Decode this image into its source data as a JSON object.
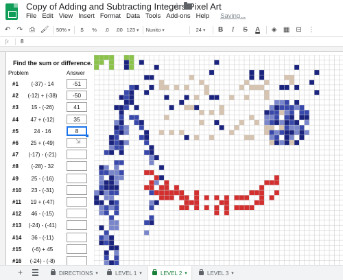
{
  "document": {
    "title": "Copy of Adding and Subtracting Integers Pixel Art",
    "saving_label": "Saving...",
    "menus": [
      "File",
      "Edit",
      "View",
      "Insert",
      "Format",
      "Data",
      "Tools",
      "Add-ons",
      "Help"
    ]
  },
  "toolbar": {
    "zoom": "50%",
    "currency": "$",
    "percent": "%",
    "decimal_less": ".0",
    "decimal_more": ".00",
    "number_format": "123",
    "font": "Nunito",
    "font_size": "24",
    "bold": "B",
    "italic": "I",
    "strike": "S",
    "text_color": "A"
  },
  "formula_bar": {
    "fx_label": "fx",
    "value": "8"
  },
  "worksheet": {
    "heading": "Find the sum or difference.",
    "problem_header": "Problem",
    "answer_header": "Answer",
    "problems": [
      {
        "num": "#1",
        "expr": "(-37) - 14",
        "answer": "-51"
      },
      {
        "num": "#2",
        "expr": "(-12) + (-38)",
        "answer": "-50"
      },
      {
        "num": "#3",
        "expr": "15 - (-26)",
        "answer": "41"
      },
      {
        "num": "#4",
        "expr": "47 + (-12)",
        "answer": "35"
      },
      {
        "num": "#5",
        "expr": "24 - 16",
        "answer": "8"
      },
      {
        "num": "#6",
        "expr": "25 + (-49)",
        "answer": ""
      },
      {
        "num": "#7",
        "expr": "(-17) - (-21)",
        "answer": ""
      },
      {
        "num": "#8",
        "expr": "(-28) - 32",
        "answer": ""
      },
      {
        "num": "#9",
        "expr": "25 - (-16)",
        "answer": ""
      },
      {
        "num": "#10",
        "expr": "23 - (-31)",
        "answer": ""
      },
      {
        "num": "#11",
        "expr": "19 + (-47)",
        "answer": ""
      },
      {
        "num": "#12",
        "expr": "46 - (-15)",
        "answer": ""
      },
      {
        "num": "#13",
        "expr": "(-24) - (-41)",
        "answer": ""
      },
      {
        "num": "#14",
        "expr": "36 - (-11)",
        "answer": ""
      },
      {
        "num": "#15",
        "expr": "(-6) + 45",
        "answer": ""
      },
      {
        "num": "#16",
        "expr": "(-24) - (-8)",
        "answer": ""
      }
    ],
    "selected_problem": "#5"
  },
  "pixel_art": {
    "colors": {
      "green": "#8bc34a",
      "navy": "#1a237e",
      "blue": "#3949ab",
      "lightblue": "#7986cb",
      "beige": "#d7c4b0",
      "red": "#d32f2f",
      "grid": "#c8c8c8"
    }
  },
  "sheet_tabs": {
    "add_sheet_icon": "plus-icon",
    "all_sheets_icon": "list-icon",
    "tabs": [
      {
        "label": "DIRECTIONS",
        "active": false
      },
      {
        "label": "LEVEL 1",
        "active": false
      },
      {
        "label": "LEVEL 2",
        "active": true
      },
      {
        "label": "LEVEL 3",
        "active": false
      }
    ]
  },
  "brand_color": "#0f9d58",
  "selection_color": "#1a73e8"
}
